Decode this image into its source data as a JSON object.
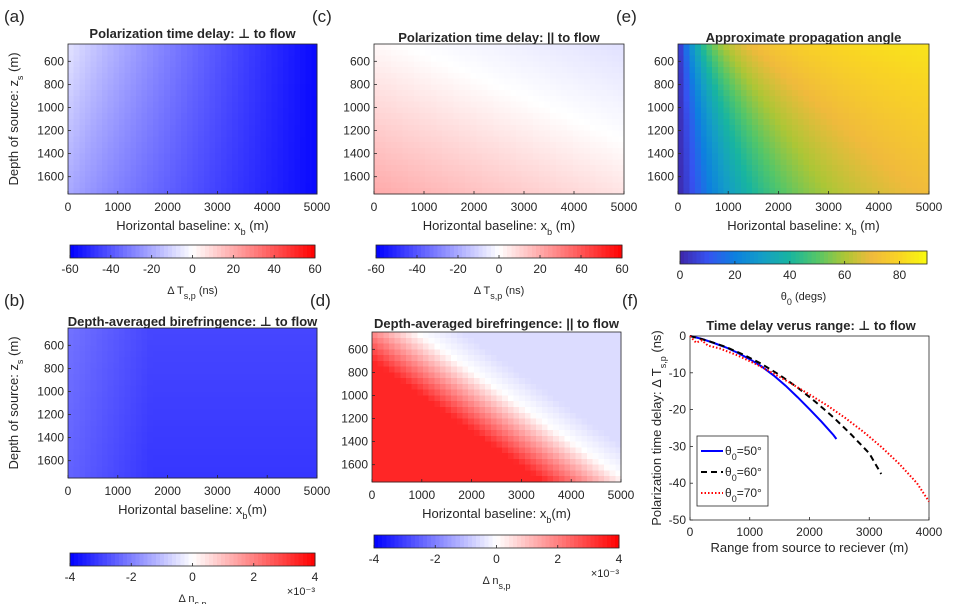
{
  "chart_data": [
    {
      "panel": "(a)",
      "type": "heatmap",
      "title": "Polarization time delay: ⊥ to flow",
      "xlabel": "Horizontal baseline: x",
      "xlabel_sub": "b",
      "xlabel_tail": " (m)",
      "ylabel": "Depth of source: z",
      "ylabel_sub": "s",
      "ylabel_tail": " (m)",
      "xlim": [
        0,
        5000
      ],
      "ylim": [
        450,
        1750
      ],
      "xticks": [
        "0",
        "1000",
        "2000",
        "3000",
        "4000",
        "5000"
      ],
      "yticks": [
        "600",
        "800",
        "1000",
        "1200",
        "1400",
        "1600"
      ],
      "colormap": "bwr",
      "clim": [
        -60,
        60
      ],
      "cbar_ticks": [
        "-60",
        "-40",
        "-20",
        "0",
        "20",
        "40",
        "60"
      ],
      "cbar_label": "Δ T",
      "cbar_label_sub": "s,p",
      "cbar_label_tail": " (ns)",
      "cbar_exp": ""
    },
    {
      "panel": "(c)",
      "type": "heatmap",
      "title": "Polarization time delay: || to flow",
      "xlabel": "Horizontal baseline: x",
      "xlabel_sub": "b",
      "xlabel_tail": " (m)",
      "ylabel": "",
      "ylabel_sub": "",
      "ylabel_tail": "",
      "xlim": [
        0,
        5000
      ],
      "ylim": [
        450,
        1750
      ],
      "xticks": [
        "0",
        "1000",
        "2000",
        "3000",
        "4000",
        "5000"
      ],
      "yticks": [
        "600",
        "800",
        "1000",
        "1200",
        "1400",
        "1600"
      ],
      "colormap": "bwr",
      "clim": [
        -60,
        60
      ],
      "cbar_ticks": [
        "-60",
        "-40",
        "-20",
        "0",
        "20",
        "40",
        "60"
      ],
      "cbar_label": "Δ T",
      "cbar_label_sub": "s,p",
      "cbar_label_tail": " (ns)",
      "cbar_exp": ""
    },
    {
      "panel": "(e)",
      "type": "heatmap",
      "title": "Approximate propagation angle",
      "xlabel": "Horizontal baseline: x",
      "xlabel_sub": "b",
      "xlabel_tail": " (m)",
      "ylabel": "",
      "ylabel_sub": "",
      "ylabel_tail": "",
      "xlim": [
        0,
        5000
      ],
      "ylim": [
        450,
        1750
      ],
      "xticks": [
        "0",
        "1000",
        "2000",
        "3000",
        "4000",
        "5000"
      ],
      "yticks": [
        "600",
        "800",
        "1000",
        "1200",
        "1400",
        "1600"
      ],
      "colormap": "parula",
      "clim": [
        0,
        90
      ],
      "cbar_ticks": [
        "0",
        "20",
        "40",
        "60",
        "80"
      ],
      "cbar_label": "θ",
      "cbar_label_sub": "0",
      "cbar_label_tail": " (degs)",
      "cbar_exp": ""
    },
    {
      "panel": "(b)",
      "type": "heatmap",
      "title": "Depth-averaged birefringence: ⊥ to flow",
      "xlabel": "Horizontal baseline: x",
      "xlabel_sub": "b",
      "xlabel_tail": "(m)",
      "ylabel": "Depth of source: z",
      "ylabel_sub": "s",
      "ylabel_tail": " (m)",
      "xlim": [
        0,
        5000
      ],
      "ylim": [
        450,
        1750
      ],
      "xticks": [
        "0",
        "1000",
        "2000",
        "3000",
        "4000",
        "5000"
      ],
      "yticks": [
        "600",
        "800",
        "1000",
        "1200",
        "1400",
        "1600"
      ],
      "colormap": "bwr",
      "clim": [
        -4,
        4
      ],
      "cbar_ticks": [
        "-4",
        "-2",
        "0",
        "2",
        "4"
      ],
      "cbar_label": "Δ n",
      "cbar_label_sub": "s,p",
      "cbar_label_tail": "",
      "cbar_exp": "×10⁻³"
    },
    {
      "panel": "(d)",
      "type": "heatmap",
      "title": "Depth-averaged birefringence: || to flow",
      "xlabel": "Horizontal baseline: x",
      "xlabel_sub": "b",
      "xlabel_tail": "(m)",
      "ylabel": "",
      "ylabel_sub": "",
      "ylabel_tail": "",
      "xlim": [
        0,
        5000
      ],
      "ylim": [
        450,
        1750
      ],
      "xticks": [
        "0",
        "1000",
        "2000",
        "3000",
        "4000",
        "5000"
      ],
      "yticks": [
        "600",
        "800",
        "1000",
        "1200",
        "1400",
        "1600"
      ],
      "colormap": "bwr",
      "clim": [
        -4,
        4
      ],
      "cbar_ticks": [
        "-4",
        "-2",
        "0",
        "2",
        "4"
      ],
      "cbar_label": "Δ n",
      "cbar_label_sub": "s,p",
      "cbar_label_tail": "",
      "cbar_exp": "×10⁻³"
    },
    {
      "panel": "(f)",
      "type": "line",
      "title": "Time delay verus range: ⊥ to flow",
      "xlabel": "Range from source to reciever (m)",
      "ylabel": "Polarization time delay: Δ T",
      "ylabel_sub": "s,p",
      "ylabel_tail": " (ns)",
      "xlim": [
        0,
        4000
      ],
      "ylim": [
        -50,
        0
      ],
      "xticks": [
        "0",
        "1000",
        "2000",
        "3000",
        "4000"
      ],
      "yticks": [
        "0",
        "-10",
        "-20",
        "-30",
        "-40",
        "-50"
      ],
      "legend_position": "bottom-left",
      "series": [
        {
          "name": "θ0=50°",
          "sym": "θ",
          "sub": "0",
          "tail": "=50°",
          "color": "#0000ff",
          "style": "solid",
          "x": [
            0,
            200,
            400,
            600,
            800,
            1000,
            1200,
            1400,
            1600,
            1800,
            2000,
            2200,
            2400,
            2450
          ],
          "y": [
            0,
            -0.8,
            -1.9,
            -3.1,
            -4.6,
            -6.3,
            -8.3,
            -10.7,
            -13.5,
            -16.6,
            -19.9,
            -23.3,
            -26.9,
            -28
          ]
        },
        {
          "name": "θ0=60°",
          "sym": "θ",
          "sub": "0",
          "tail": "=60°",
          "color": "#000000",
          "style": "dashed",
          "x": [
            0,
            300,
            600,
            900,
            1200,
            1500,
            1800,
            2100,
            2400,
            2700,
            3000,
            3200
          ],
          "y": [
            0,
            -1.3,
            -3.0,
            -5.1,
            -7.6,
            -10.6,
            -14.0,
            -17.9,
            -22.1,
            -26.8,
            -31.9,
            -37.5
          ]
        },
        {
          "name": "θ0=70°",
          "sym": "θ",
          "sub": "0",
          "tail": "=70°",
          "color": "#ff0000",
          "style": "dotted",
          "x": [
            0,
            100,
            200,
            300,
            500,
            800,
            1100,
            1400,
            1700,
            2000,
            2300,
            2600,
            2900,
            3200,
            3500,
            3800,
            4000
          ],
          "y": [
            0,
            -1.8,
            -1.2,
            -2.6,
            -3.4,
            -5.3,
            -7.6,
            -10.2,
            -13.0,
            -15.9,
            -18.9,
            -22.3,
            -26.0,
            -30.1,
            -34.7,
            -40.0,
            -45.0
          ]
        }
      ]
    }
  ]
}
